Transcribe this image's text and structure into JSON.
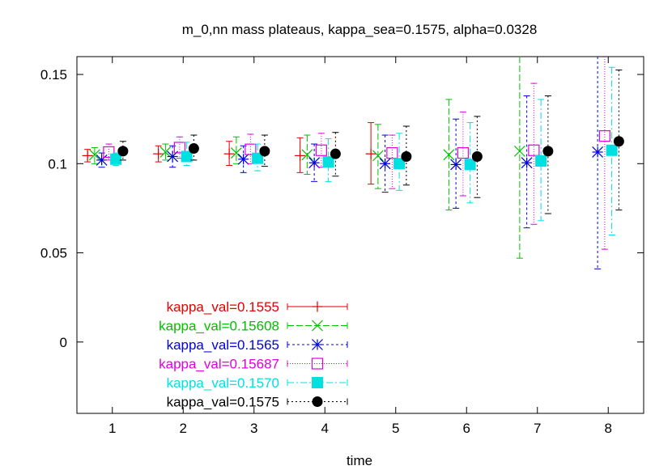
{
  "chart_data": {
    "type": "scatter",
    "title": "m_0,nn mass plateaus, kappa_sea=0.1575, alpha=0.0328",
    "xlabel": "time",
    "ylabel": "",
    "xlim": [
      0.5,
      8.5
    ],
    "ylim": [
      -0.04,
      0.16
    ],
    "x_ticks": [
      "1",
      "2",
      "3",
      "4",
      "5",
      "6",
      "7",
      "8"
    ],
    "y_ticks": [
      {
        "value": 0,
        "label": "0"
      },
      {
        "value": 0.05,
        "label": "0.05"
      },
      {
        "value": 0.1,
        "label": "0.1"
      },
      {
        "value": 0.15,
        "label": "0.15"
      }
    ],
    "grid": false,
    "legend": "bottom-left",
    "series": [
      {
        "name": "kappa_val=0.1555",
        "color": "#e00000",
        "marker": "plus",
        "dash": "none",
        "x_offset": -0.35,
        "points": [
          {
            "x": 1,
            "y": 0.1045,
            "lo": 0.101,
            "hi": 0.108
          },
          {
            "x": 2,
            "y": 0.1055,
            "lo": 0.101,
            "hi": 0.11
          },
          {
            "x": 3,
            "y": 0.1055,
            "lo": 0.099,
            "hi": 0.1125
          },
          {
            "x": 4,
            "y": 0.1045,
            "lo": 0.095,
            "hi": 0.1145
          },
          {
            "x": 5,
            "y": 0.1055,
            "lo": 0.0885,
            "hi": 0.123
          }
        ]
      },
      {
        "name": "kappa_val=0.15608",
        "color": "#00c000",
        "marker": "cross",
        "dash": "8,3",
        "x_offset": -0.25,
        "points": [
          {
            "x": 1,
            "y": 0.105,
            "lo": 0.1,
            "hi": 0.109
          },
          {
            "x": 2,
            "y": 0.1065,
            "lo": 0.102,
            "hi": 0.111
          },
          {
            "x": 3,
            "y": 0.106,
            "lo": 0.1,
            "hi": 0.115
          },
          {
            "x": 4,
            "y": 0.105,
            "lo": 0.094,
            "hi": 0.116
          },
          {
            "x": 5,
            "y": 0.1045,
            "lo": 0.086,
            "hi": 0.122
          },
          {
            "x": 6,
            "y": 0.105,
            "lo": 0.074,
            "hi": 0.136
          },
          {
            "x": 7,
            "y": 0.107,
            "lo": 0.047,
            "hi": 0.161
          }
        ]
      },
      {
        "name": "kappa_val=0.1565",
        "color": "#0000e0",
        "marker": "star",
        "dash": "3,3",
        "x_offset": -0.15,
        "points": [
          {
            "x": 1,
            "y": 0.102,
            "lo": 0.098,
            "hi": 0.106
          },
          {
            "x": 2,
            "y": 0.104,
            "lo": 0.098,
            "hi": 0.11
          },
          {
            "x": 3,
            "y": 0.1025,
            "lo": 0.095,
            "hi": 0.11
          },
          {
            "x": 4,
            "y": 0.1005,
            "lo": 0.09,
            "hi": 0.111
          },
          {
            "x": 5,
            "y": 0.1,
            "lo": 0.084,
            "hi": 0.116
          },
          {
            "x": 6,
            "y": 0.0995,
            "lo": 0.075,
            "hi": 0.125
          },
          {
            "x": 7,
            "y": 0.1005,
            "lo": 0.064,
            "hi": 0.138
          },
          {
            "x": 8,
            "y": 0.1065,
            "lo": 0.041,
            "hi": 0.161
          }
        ]
      },
      {
        "name": "kappa_val=0.15687",
        "color": "#e000e0",
        "marker": "square-open",
        "dash": "1,2",
        "x_offset": -0.05,
        "points": [
          {
            "x": 1,
            "y": 0.1065,
            "lo": 0.102,
            "hi": 0.111
          },
          {
            "x": 2,
            "y": 0.109,
            "lo": 0.103,
            "hi": 0.115
          },
          {
            "x": 3,
            "y": 0.108,
            "lo": 0.1,
            "hi": 0.1165
          },
          {
            "x": 4,
            "y": 0.1075,
            "lo": 0.098,
            "hi": 0.117
          },
          {
            "x": 5,
            "y": 0.106,
            "lo": 0.086,
            "hi": 0.116
          },
          {
            "x": 6,
            "y": 0.106,
            "lo": 0.082,
            "hi": 0.129
          },
          {
            "x": 7,
            "y": 0.1075,
            "lo": 0.066,
            "hi": 0.145
          },
          {
            "x": 8,
            "y": 0.1155,
            "lo": 0.052,
            "hi": 0.161
          }
        ]
      },
      {
        "name": "kappa_val=0.1570",
        "color": "#00e0e0",
        "marker": "square-filled",
        "dash": "8,3,2,3",
        "x_offset": 0.05,
        "points": [
          {
            "x": 1,
            "y": 0.1025,
            "lo": 0.099,
            "hi": 0.106
          },
          {
            "x": 2,
            "y": 0.104,
            "lo": 0.099,
            "hi": 0.112
          },
          {
            "x": 3,
            "y": 0.103,
            "lo": 0.096,
            "hi": 0.111
          },
          {
            "x": 4,
            "y": 0.101,
            "lo": 0.09,
            "hi": 0.114
          },
          {
            "x": 5,
            "y": 0.1,
            "lo": 0.085,
            "hi": 0.117
          },
          {
            "x": 6,
            "y": 0.0995,
            "lo": 0.078,
            "hi": 0.123
          },
          {
            "x": 7,
            "y": 0.1015,
            "lo": 0.068,
            "hi": 0.136
          },
          {
            "x": 8,
            "y": 0.1075,
            "lo": 0.06,
            "hi": 0.154
          }
        ]
      },
      {
        "name": "kappa_val=0.1575",
        "color": "#000000",
        "marker": "circle-filled",
        "dash": "2,3",
        "x_offset": 0.15,
        "points": [
          {
            "x": 1,
            "y": 0.107,
            "lo": 0.102,
            "hi": 0.1125
          },
          {
            "x": 2,
            "y": 0.1085,
            "lo": 0.102,
            "hi": 0.116
          },
          {
            "x": 3,
            "y": 0.107,
            "lo": 0.0985,
            "hi": 0.116
          },
          {
            "x": 4,
            "y": 0.1055,
            "lo": 0.093,
            "hi": 0.1175
          },
          {
            "x": 5,
            "y": 0.104,
            "lo": 0.088,
            "hi": 0.121
          },
          {
            "x": 6,
            "y": 0.104,
            "lo": 0.081,
            "hi": 0.1265
          },
          {
            "x": 7,
            "y": 0.107,
            "lo": 0.072,
            "hi": 0.138
          },
          {
            "x": 8,
            "y": 0.1125,
            "lo": 0.074,
            "hi": 0.1525
          }
        ]
      }
    ]
  }
}
